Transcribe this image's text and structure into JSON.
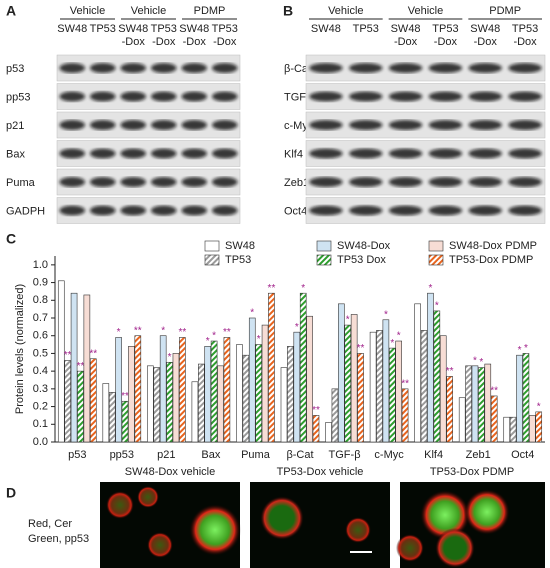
{
  "panels": {
    "A": {
      "label": "A",
      "groups": [
        "Vehicle",
        "Vehicle",
        "PDMP"
      ],
      "columns": [
        [
          "SW48"
        ],
        [
          "TP53"
        ],
        [
          "SW48",
          "-Dox"
        ],
        [
          "TP53",
          "-Dox"
        ],
        [
          "SW48",
          "-Dox"
        ],
        [
          "TP53",
          "-Dox"
        ]
      ],
      "rows": [
        "p53",
        "pp53",
        "p21",
        "Bax",
        "Puma",
        "GADPH"
      ]
    },
    "B": {
      "label": "B",
      "groups": [
        "Vehicle",
        "Vehicle",
        "PDMP"
      ],
      "columns": [
        [
          "SW48"
        ],
        [
          "TP53"
        ],
        [
          "SW48",
          "-Dox"
        ],
        [
          "TP53",
          "-Dox"
        ],
        [
          "SW48",
          "-Dox"
        ],
        [
          "TP53",
          "-Dox"
        ]
      ],
      "rows": [
        "β-Cat",
        "TGF-β",
        "c-Myc",
        "Klf4",
        "Zeb1",
        "Oct4"
      ]
    },
    "C": {
      "label": "C"
    },
    "D": {
      "label": "D",
      "images": [
        "SW48-Dox vehicle",
        "TP53-Dox vehicle",
        "TP53-Dox PDMP"
      ],
      "stain_legend": [
        "Red, Cer",
        "Green, pp53"
      ]
    }
  },
  "chart_data": {
    "type": "bar",
    "y_label": "Protein levels (normalized)",
    "categories": [
      "p53",
      "pp53",
      "p21",
      "Bax",
      "Puma",
      "β-Cat",
      "TGF-β",
      "c-Myc",
      "Klf4",
      "Zeb1",
      "Oct4"
    ],
    "ylim": [
      0,
      1.05
    ],
    "yticks": [
      {
        "value": 0,
        "label": "0.0"
      },
      {
        "value": 0.1,
        "label": "0.1"
      },
      {
        "value": 0.2,
        "label": "0.2"
      },
      {
        "value": 0.3,
        "label": "0.3"
      },
      {
        "value": 0.4,
        "label": "0.4"
      },
      {
        "value": 0.5,
        "label": "0.5"
      },
      {
        "value": 0.6,
        "label": "0.6"
      },
      {
        "value": 0.7,
        "label": "0.7"
      },
      {
        "value": 0.8,
        "label": "0.8"
      },
      {
        "value": 0.9,
        "label": "0.9"
      },
      {
        "value": 1,
        "label": "1.0"
      }
    ],
    "series": [
      {
        "name": "SW48",
        "color": "#ffffff",
        "hatch": false,
        "values": [
          0.91,
          0.33,
          0.43,
          0.34,
          0.55,
          0.42,
          0.11,
          0.62,
          0.78,
          0.25,
          0.14
        ],
        "significance": [
          null,
          null,
          null,
          null,
          null,
          null,
          null,
          null,
          null,
          null,
          null
        ]
      },
      {
        "name": "TP53",
        "color": "#9a9a9a",
        "hatch": true,
        "values": [
          0.46,
          0.28,
          0.42,
          0.44,
          0.49,
          0.54,
          0.3,
          0.63,
          0.63,
          0.43,
          0.14
        ],
        "significance": [
          "**",
          null,
          null,
          null,
          null,
          null,
          null,
          null,
          null,
          null,
          null
        ]
      },
      {
        "name": "SW48-Dox",
        "color": "#cfe3f2",
        "hatch": false,
        "values": [
          0.84,
          0.59,
          0.6,
          0.54,
          0.7,
          0.62,
          0.78,
          0.69,
          0.84,
          0.43,
          0.49
        ],
        "significance": [
          null,
          "*",
          "*",
          "*",
          "*",
          "*",
          null,
          "*",
          "*",
          "*",
          "*"
        ]
      },
      {
        "name": "TP53 Dox",
        "color": "#2e9e2e",
        "hatch": true,
        "values": [
          0.4,
          0.23,
          0.45,
          0.57,
          0.55,
          0.84,
          0.66,
          0.53,
          0.74,
          0.42,
          0.5
        ],
        "significance": [
          "**",
          "**",
          "*",
          "*",
          "*",
          "*",
          "*",
          "*",
          "*",
          "*",
          "*"
        ]
      },
      {
        "name": "SW48-Dox PDMP",
        "color": "#f7ddd5",
        "hatch": false,
        "values": [
          0.83,
          0.54,
          0.5,
          0.43,
          0.66,
          0.71,
          0.72,
          0.57,
          0.6,
          0.44,
          0.15
        ],
        "significance": [
          null,
          null,
          null,
          null,
          null,
          null,
          null,
          "*",
          null,
          null,
          null
        ]
      },
      {
        "name": "TP53-Dox PDMP",
        "color": "#e8641e",
        "hatch": true,
        "values": [
          0.47,
          0.6,
          0.59,
          0.59,
          0.84,
          0.15,
          0.5,
          0.3,
          0.37,
          0.26,
          0.17
        ],
        "significance": [
          "**",
          "**",
          "**",
          "**",
          "**",
          "**",
          "**",
          "**",
          "**",
          "**",
          "*"
        ]
      }
    ]
  }
}
